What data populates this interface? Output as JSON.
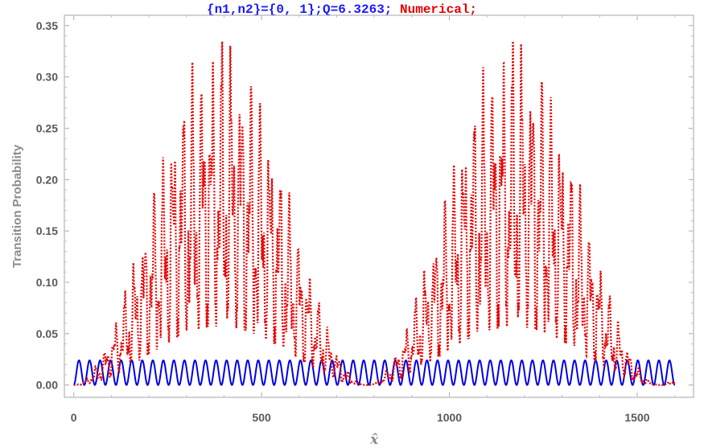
{
  "chart_data": {
    "type": "line",
    "title_parts": [
      {
        "text": "{n1,n2}={0, 1};Q=6.3263;",
        "color": "#1a1aff"
      },
      {
        "text": " Numerical;",
        "color": "#e60000"
      }
    ],
    "xlabel": "x̂",
    "ylabel": "Transition Probability",
    "xlim": [
      -25,
      1650
    ],
    "ylim": [
      -0.012,
      0.36
    ],
    "xticks": [
      0,
      500,
      1000,
      1500
    ],
    "xtick_labels": [
      "0",
      "500",
      "1000",
      "1500"
    ],
    "yticks": [
      0.0,
      0.05,
      0.1,
      0.15,
      0.2,
      0.25,
      0.3,
      0.35
    ],
    "ytick_labels": [
      "0.00",
      "0.05",
      "0.10",
      "0.15",
      "0.20",
      "0.25",
      "0.30",
      "0.35"
    ],
    "grid": false,
    "frame": true,
    "series": [
      {
        "style": "solid",
        "color": "#0000e6",
        "x_range": [
          0,
          1600
        ],
        "amplitude": 0.024,
        "oscillations": 57
      },
      {
        "style": "dotted",
        "color": "#e60000",
        "x_range": [
          0,
          1600
        ],
        "envelope_peaks": [
          {
            "x": 360,
            "y": 0.345
          },
          {
            "x": 1180,
            "y": 0.345
          }
        ],
        "envelope_minima": [
          {
            "x": 0,
            "y": 0.0
          },
          {
            "x": 780,
            "y": 0.0
          },
          {
            "x": 1600,
            "y": 0.0
          }
        ],
        "oscillations": 62
      }
    ]
  }
}
